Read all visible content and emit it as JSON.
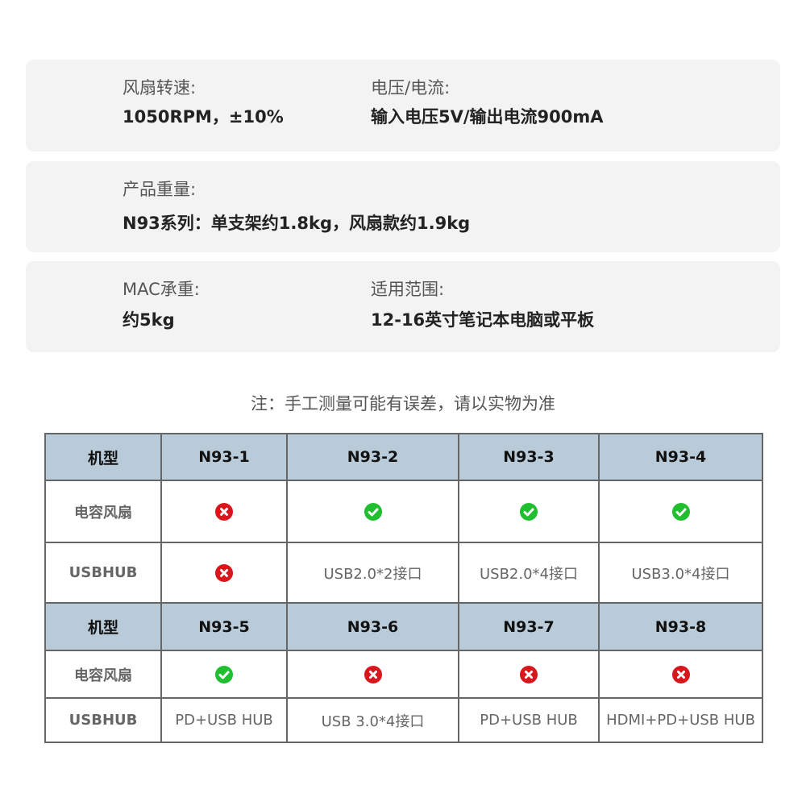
{
  "specs": [
    {
      "fields": [
        {
          "label": "风扇转速:",
          "value": "1050RPM，±10%"
        },
        {
          "label": "电压/电流:",
          "value": "输入电压5V/输出电流900mA"
        }
      ]
    },
    {
      "fields": [
        {
          "label": "产品重量:",
          "value": "N93系列：单支架约1.8kg，风扇款约1.9kg"
        }
      ]
    },
    {
      "fields": [
        {
          "label": "MAC承重:",
          "value": "约5kg"
        },
        {
          "label": "适用范围:",
          "value": "12-16英寸笔记本电脑或平板"
        }
      ]
    }
  ],
  "note": "注：手工测量可能有误差，请以实物为准",
  "colors": {
    "check": "#1fbf2f",
    "cross": "#d9161c",
    "header_bg": "#b9cbd9"
  },
  "table": {
    "rows": [
      {
        "type": "head",
        "cells": [
          "机型",
          "N93-1",
          "N93-2",
          "N93-3",
          "N93-4"
        ]
      },
      {
        "type": "body",
        "cells": [
          "电容风扇",
          {
            "icon": "cross"
          },
          {
            "icon": "check"
          },
          {
            "icon": "check"
          },
          {
            "icon": "check"
          }
        ]
      },
      {
        "type": "body",
        "cells": [
          "USBHUB",
          {
            "icon": "cross"
          },
          "USB2.0*2接口",
          "USB2.0*4接口",
          "USB3.0*4接口"
        ]
      },
      {
        "type": "head",
        "cells": [
          "机型",
          "N93-5",
          "N93-6",
          "N93-7",
          "N93-8"
        ]
      },
      {
        "type": "body",
        "cells": [
          "电容风扇",
          {
            "icon": "check"
          },
          {
            "icon": "cross"
          },
          {
            "icon": "cross"
          },
          {
            "icon": "cross"
          }
        ]
      },
      {
        "type": "body",
        "cells": [
          "USBHUB",
          "PD+USB HUB",
          "USB 3.0*4接口",
          "PD+USB HUB",
          "HDMI+PD+USB HUB"
        ]
      }
    ]
  }
}
